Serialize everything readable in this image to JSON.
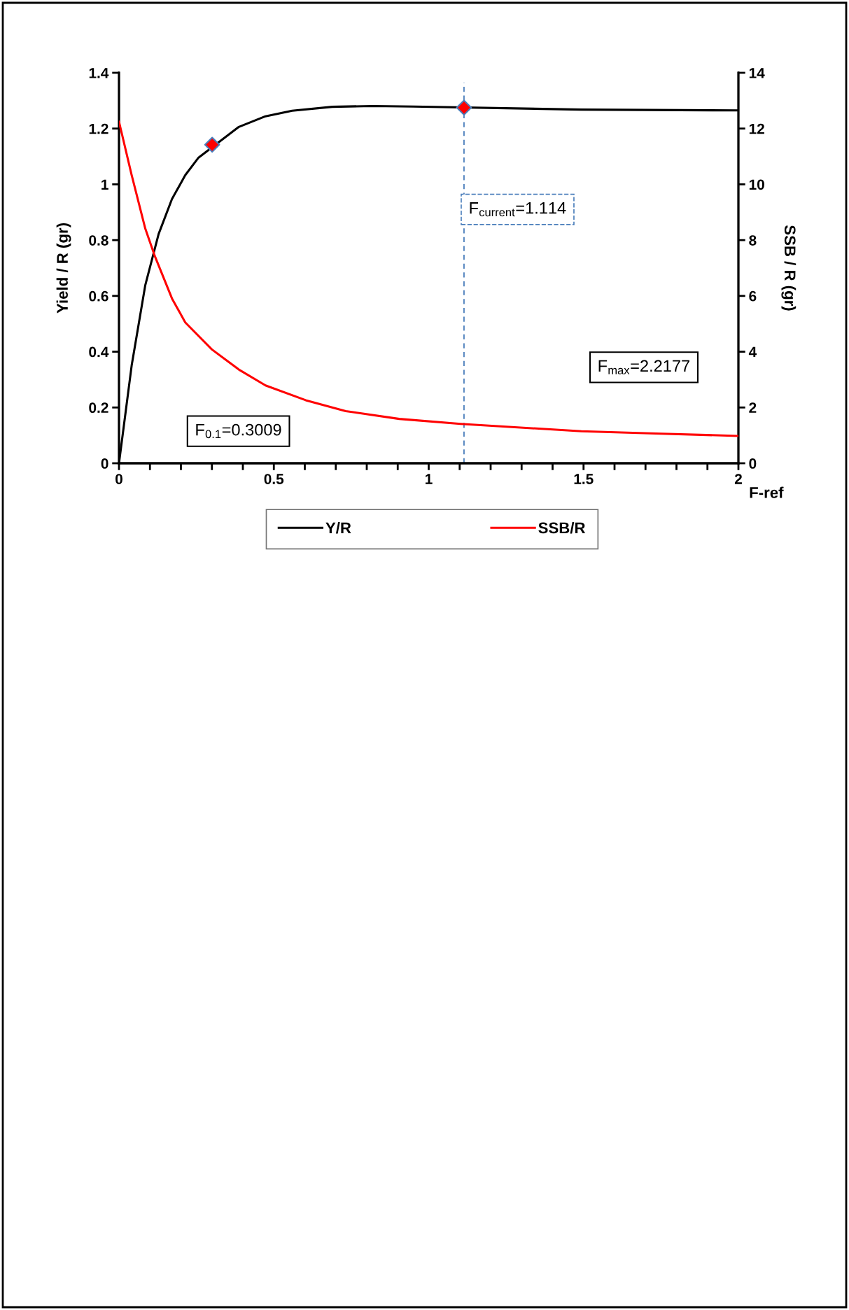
{
  "chart_data": {
    "type": "line",
    "xlabel": "F-ref",
    "ylabel": "Yield / R (gr)",
    "y2label": "SSB / R (gr)",
    "xlim": [
      0,
      2
    ],
    "ylim": [
      0,
      1.4
    ],
    "y2lim": [
      0,
      14
    ],
    "xticks": [
      0,
      {
        "value": 0.1,
        "label": null
      },
      {
        "value": 0.2,
        "label": null
      },
      {
        "value": 0.3,
        "label": null
      },
      {
        "value": 0.4,
        "label": null
      },
      0.5,
      {
        "value": 0.6,
        "label": null
      },
      {
        "value": 0.7,
        "label": null
      },
      {
        "value": 0.8,
        "label": null
      },
      {
        "value": 0.9,
        "label": null
      },
      1,
      {
        "value": 1.1,
        "label": null
      },
      {
        "value": 1.2,
        "label": null
      },
      {
        "value": 1.3,
        "label": null
      },
      {
        "value": 1.4,
        "label": null
      },
      1.5,
      {
        "value": 1.6,
        "label": null
      },
      {
        "value": 1.7,
        "label": null
      },
      {
        "value": 1.8,
        "label": null
      },
      {
        "value": 1.9,
        "label": null
      },
      2
    ],
    "yticks": [
      0,
      0.2,
      0.4,
      0.6,
      0.8,
      1,
      1.2,
      1.4
    ],
    "y2ticks": [
      0,
      2,
      4,
      6,
      8,
      10,
      12,
      14
    ],
    "grid": false,
    "legend": "bottom",
    "series": [
      {
        "name": "Y/R",
        "color": "#000000",
        "x": [
          0,
          0.041,
          0.085,
          0.128,
          0.171,
          0.214,
          0.257,
          0.387,
          0.473,
          0.559,
          0.689,
          0.818,
          0.95,
          1.493,
          2
        ],
        "values": [
          0,
          0.351,
          0.639,
          0.822,
          0.947,
          1.033,
          1.096,
          1.206,
          1.244,
          1.264,
          1.278,
          1.281,
          1.279,
          1.268,
          1.265
        ]
      },
      {
        "name": "SSB/R",
        "axis": "y2",
        "color": "#ff0000",
        "x": [
          0,
          0.041,
          0.085,
          0.115,
          0.171,
          0.214,
          0.3,
          0.387,
          0.473,
          0.603,
          0.732,
          0.905,
          1.103,
          1.493,
          1.752,
          2
        ],
        "values": [
          12.25,
          10.33,
          8.41,
          7.45,
          5.91,
          5.05,
          4.08,
          3.36,
          2.79,
          2.26,
          1.87,
          1.59,
          1.41,
          1.15,
          1.06,
          0.98
        ]
      },
      {
        "type": "scatter",
        "marker": "diamond",
        "color": "#ff0000",
        "x": [
          0.3009,
          1.114
        ],
        "values": [
          1.142,
          1.275
        ]
      }
    ],
    "ref_lines": [
      {
        "axis": "x",
        "value": 1.114,
        "label": "F$_{current}$=1.114",
        "color": "#4a7ebb",
        "line_style": "dashed"
      }
    ],
    "annotations": [
      "F$_{0.1}$=0.3009",
      "F$_{max}$=2.2177"
    ]
  }
}
